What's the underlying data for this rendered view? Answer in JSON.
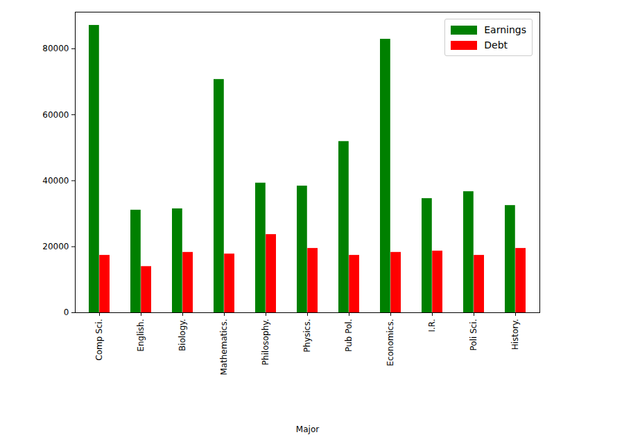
{
  "chart_data": {
    "type": "bar",
    "x_label": "Major",
    "categories": [
      "Comp Sci.",
      "English.",
      "Biology.",
      "Mathematics.",
      "Philosophy.",
      "Physics.",
      "Pub Pol.",
      "Economics.",
      "I.R.",
      "Poli Sci.",
      "History."
    ],
    "series": [
      {
        "name": "Earnings",
        "color": "#008000",
        "values": [
          87100,
          31100,
          31500,
          70700,
          39300,
          38400,
          51900,
          82900,
          34600,
          36700,
          32500
        ]
      },
      {
        "name": "Debt",
        "color": "#ff0000",
        "values": [
          17400,
          14000,
          18300,
          17800,
          23700,
          19500,
          17400,
          18300,
          18700,
          17400,
          19500
        ]
      }
    ],
    "ylim": [
      0,
      91100
    ],
    "yticks": [
      0,
      20000,
      40000,
      60000,
      80000
    ],
    "grid": false,
    "legend": "upper right"
  }
}
